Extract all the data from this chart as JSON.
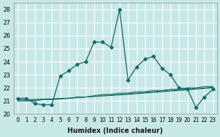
{
  "xlabel": "Humidex (Indice chaleur)",
  "ylabel": "",
  "background_color": "#c8e8e8",
  "grid_color": "#ffffff",
  "line_color": "#1a6b6b",
  "x": [
    0,
    1,
    2,
    3,
    4,
    5,
    6,
    7,
    8,
    9,
    10,
    11,
    12,
    13,
    14,
    15,
    16,
    17,
    18,
    19,
    20,
    21,
    22,
    23
  ],
  "y_main": [
    21.2,
    21.2,
    20.8,
    20.7,
    20.7,
    22.9,
    23.3,
    23.8,
    24.0,
    25.5,
    25.5,
    25.1,
    28.0,
    22.6,
    23.6,
    24.2,
    24.4,
    23.5,
    23.0,
    22.0,
    21.9,
    20.5,
    21.3,
    21.9
  ],
  "y_line1": [
    21.0,
    21.0,
    21.0,
    21.1,
    21.1,
    21.2,
    21.2,
    21.3,
    21.3,
    21.4,
    21.5,
    21.5,
    21.6,
    21.6,
    21.7,
    21.7,
    21.8,
    21.8,
    21.9,
    21.9,
    22.0,
    22.0,
    22.1,
    22.1
  ],
  "y_line2": [
    21.0,
    21.0,
    21.05,
    21.1,
    21.1,
    21.15,
    21.2,
    21.25,
    21.3,
    21.35,
    21.4,
    21.45,
    21.5,
    21.55,
    21.6,
    21.65,
    21.7,
    21.75,
    21.8,
    21.85,
    21.9,
    21.95,
    22.0,
    22.05
  ],
  "y_line3": [
    21.1,
    21.1,
    21.12,
    21.14,
    21.16,
    21.18,
    21.22,
    21.26,
    21.3,
    21.34,
    21.38,
    21.42,
    21.46,
    21.5,
    21.55,
    21.6,
    21.65,
    21.7,
    21.75,
    21.8,
    21.85,
    21.9,
    21.95,
    22.0
  ],
  "ylim": [
    20.0,
    28.5
  ],
  "xlim": [
    -0.5,
    23.5
  ],
  "yticks": [
    20,
    21,
    22,
    23,
    24,
    25,
    26,
    27,
    28
  ]
}
